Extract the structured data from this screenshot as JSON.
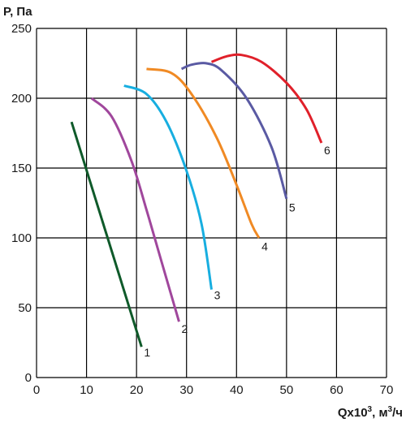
{
  "chart_data": {
    "type": "line",
    "title": "",
    "ylabel": "P, Па",
    "xlabel": {
      "main": "Qx10",
      "sup": "3",
      "unit": ", м",
      "unit_sup": "3",
      "unit_end": "/ч"
    },
    "xlim": [
      0,
      70
    ],
    "ylim": [
      0,
      250
    ],
    "x_ticks": [
      0,
      10,
      20,
      30,
      40,
      50,
      60,
      70
    ],
    "y_ticks": [
      0,
      50,
      100,
      150,
      200,
      250
    ],
    "grid": true,
    "series": [
      {
        "name": "1",
        "color": "#0f5a2a",
        "points": [
          [
            7,
            183
          ],
          [
            21,
            22
          ]
        ],
        "label_at": [
          21.5,
          15
        ]
      },
      {
        "name": "2",
        "color": "#a0479c",
        "points": [
          [
            11,
            200
          ],
          [
            15,
            187
          ],
          [
            19,
            155
          ],
          [
            22,
            120
          ],
          [
            25,
            83
          ],
          [
            28.5,
            40
          ]
        ],
        "label_at": [
          29,
          32
        ]
      },
      {
        "name": "3",
        "color": "#17aee0",
        "points": [
          [
            17.5,
            209
          ],
          [
            22,
            203
          ],
          [
            26,
            183
          ],
          [
            30,
            148
          ],
          [
            33,
            110
          ],
          [
            35,
            63
          ]
        ],
        "label_at": [
          35.5,
          56
        ]
      },
      {
        "name": "4",
        "color": "#f08a24",
        "points": [
          [
            22,
            221
          ],
          [
            27,
            218
          ],
          [
            31,
            203
          ],
          [
            36,
            172
          ],
          [
            40,
            138
          ],
          [
            43,
            110
          ],
          [
            44.5,
            100
          ]
        ],
        "label_at": [
          45,
          91
        ]
      },
      {
        "name": "5",
        "color": "#5a5aa3",
        "points": [
          [
            29,
            221
          ],
          [
            31,
            224
          ],
          [
            34,
            225
          ],
          [
            37,
            220
          ],
          [
            42,
            200
          ],
          [
            47,
            165
          ],
          [
            50,
            128
          ]
        ],
        "label_at": [
          50.5,
          119
        ]
      },
      {
        "name": "6",
        "color": "#e0202a",
        "points": [
          [
            35,
            226
          ],
          [
            38,
            230
          ],
          [
            41,
            231
          ],
          [
            45,
            226
          ],
          [
            50,
            211
          ],
          [
            54,
            192
          ],
          [
            57,
            168
          ]
        ],
        "label_at": [
          57.5,
          160
        ]
      }
    ]
  }
}
